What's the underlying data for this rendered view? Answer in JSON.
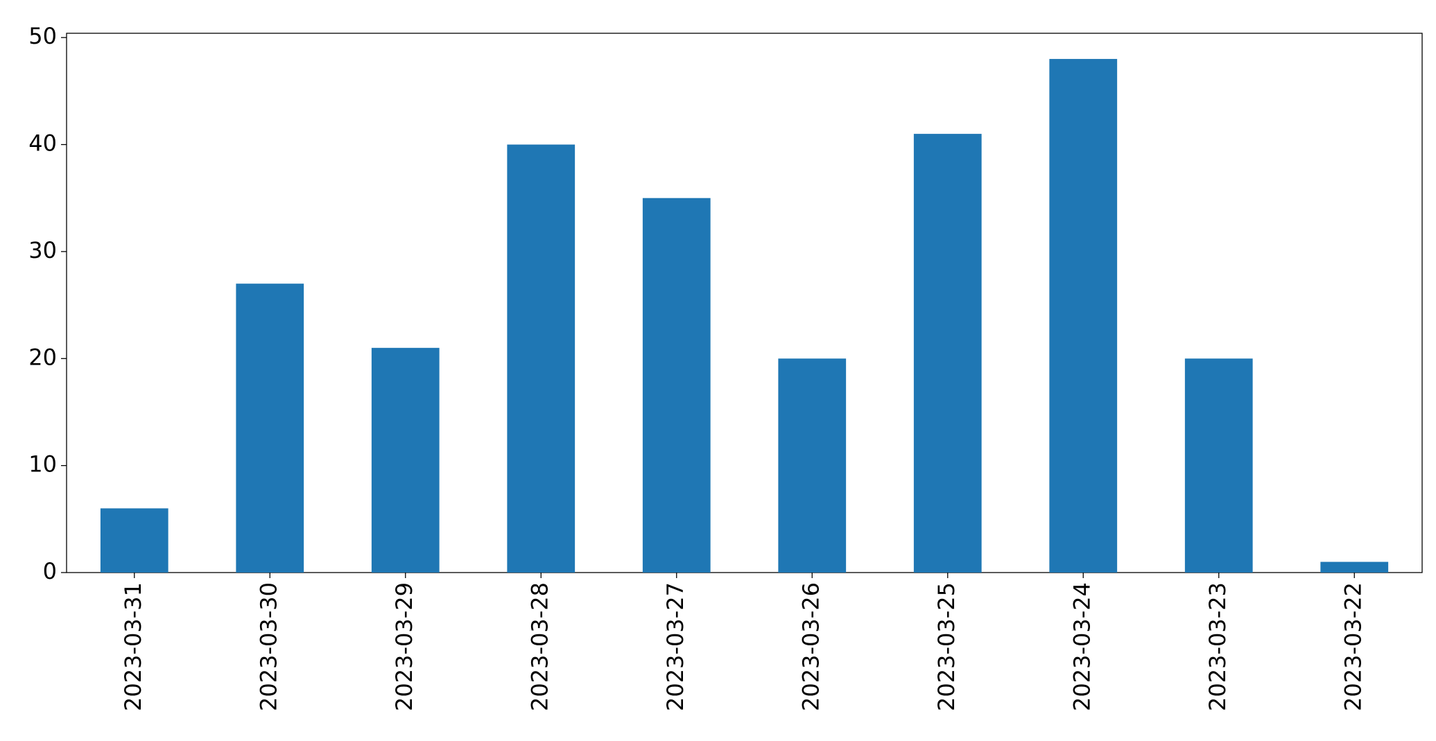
{
  "chart_data": {
    "type": "bar",
    "categories": [
      "2023-03-31",
      "2023-03-30",
      "2023-03-29",
      "2023-03-28",
      "2023-03-27",
      "2023-03-26",
      "2023-03-25",
      "2023-03-24",
      "2023-03-23",
      "2023-03-22"
    ],
    "values": [
      6,
      27,
      21,
      40,
      35,
      20,
      41,
      48,
      20,
      1
    ],
    "color": "#1f77b4",
    "ylim": [
      0,
      50.4
    ],
    "yticks": [
      0,
      10,
      20,
      30,
      40,
      50
    ],
    "grid": false
  }
}
